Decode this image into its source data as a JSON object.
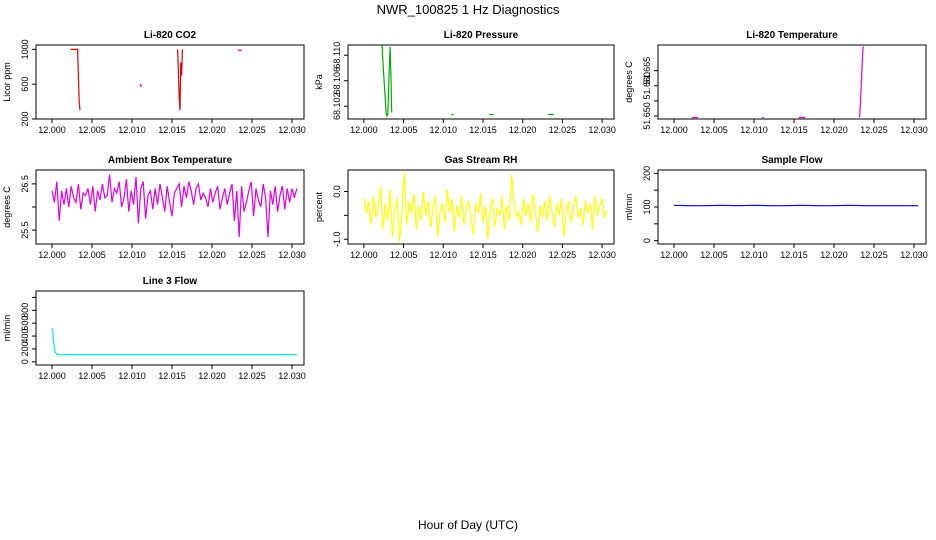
{
  "page": {
    "title": "NWR_100825  1 Hz Diagnostics",
    "xlabel": "Hour of Day (UTC)"
  },
  "chart_data": [
    {
      "type": "line",
      "title": "Li-820 CO2",
      "ylabel": "Licor ppm",
      "color": "#dd0000",
      "xlim": [
        11.998,
        12.0315
      ],
      "ylim": [
        200,
        1050
      ],
      "xticks": [
        12.0,
        12.005,
        12.01,
        12.015,
        12.02,
        12.025,
        12.03
      ],
      "xtick_labels": [
        "12.000",
        "12.005",
        "12.010",
        "12.015",
        "12.020",
        "12.025",
        "12.030"
      ],
      "yticks": [
        200,
        600,
        1000
      ],
      "ytick_labels": [
        "200",
        "600",
        "1000"
      ],
      "segments": [
        {
          "x": [
            12.0023,
            12.003,
            12.0032,
            12.0033,
            12.0034,
            12.0035
          ],
          "y": [
            1000,
            1000,
            1000,
            700,
            400,
            300
          ]
        },
        {
          "x": [
            12.011,
            12.0112
          ],
          "y": [
            600,
            570
          ]
        },
        {
          "x": [
            12.0157,
            12.0158,
            12.0159,
            12.016,
            12.0161,
            12.0162,
            12.0163
          ],
          "y": [
            1000,
            750,
            450,
            300,
            850,
            700,
            1000
          ]
        },
        {
          "x": [
            12.0232,
            12.0237
          ],
          "y": [
            990,
            990
          ]
        }
      ]
    },
    {
      "type": "line",
      "title": "Li-820 Pressure",
      "ylabel": "kPa",
      "color": "#00b000",
      "xlim": [
        11.998,
        12.0315
      ],
      "ylim": [
        68.1,
        68.1116
      ],
      "xticks": [
        12.0,
        12.005,
        12.01,
        12.015,
        12.02,
        12.025,
        12.03
      ],
      "xtick_labels": [
        "12.000",
        "12.005",
        "12.010",
        "12.015",
        "12.020",
        "12.025",
        "12.030"
      ],
      "yticks": [
        68.102,
        68.106,
        68.11
      ],
      "ytick_labels": [
        "68.102",
        "68.106",
        "68.110"
      ],
      "segments": [
        {
          "x": [
            12.0023,
            12.0024,
            12.0025,
            12.0026,
            12.0027,
            12.0028,
            12.0029,
            12.003,
            12.0031,
            12.0032,
            12.0033,
            12.0034,
            12.0035
          ],
          "y": [
            68.1115,
            68.109,
            68.107,
            68.105,
            68.103,
            68.101,
            68.1005,
            68.1007,
            68.104,
            68.108,
            68.1113,
            68.107,
            68.101
          ]
        },
        {
          "x": [
            12.011,
            12.0113
          ],
          "y": [
            68.1007,
            68.1007
          ]
        },
        {
          "x": [
            12.0158,
            12.0163
          ],
          "y": [
            68.1007,
            68.1007
          ]
        },
        {
          "x": [
            12.0232,
            12.0239
          ],
          "y": [
            68.1007,
            68.1007
          ]
        }
      ]
    },
    {
      "type": "line",
      "title": "Li-820 Temperature",
      "ylabel": "degrees C",
      "color": "#e000e0",
      "xlim": [
        11.998,
        12.0315
      ],
      "ylim": [
        51.649,
        51.6735
      ],
      "xticks": [
        12.0,
        12.005,
        12.01,
        12.015,
        12.02,
        12.025,
        12.03
      ],
      "xtick_labels": [
        "12.000",
        "12.005",
        "12.010",
        "12.015",
        "12.020",
        "12.025",
        "12.030"
      ],
      "yticks": [
        51.65,
        51.655,
        51.66,
        51.665
      ],
      "ytick_labels": [
        "51.650",
        "",
        "51.660",
        "51.665"
      ],
      "segments": [
        {
          "x": [
            12.0022,
            12.003
          ],
          "y": [
            51.6495,
            51.6495
          ]
        },
        {
          "x": [
            12.011,
            12.0112
          ],
          "y": [
            51.6495,
            51.6495
          ]
        },
        {
          "x": [
            12.0156,
            12.0164
          ],
          "y": [
            51.6495,
            51.6495
          ]
        },
        {
          "x": [
            12.0232,
            12.0233,
            12.0234,
            12.0235,
            12.0236,
            12.0237
          ],
          "y": [
            51.6495,
            51.654,
            51.66,
            51.666,
            51.672,
            51.673
          ]
        }
      ]
    },
    {
      "type": "line",
      "title": "Ambient Box Temperature",
      "ylabel": "degrees C",
      "color": "#e000e0",
      "xlim": [
        11.998,
        12.0315
      ],
      "ylim": [
        25.2,
        26.8
      ],
      "xticks": [
        12.0,
        12.005,
        12.01,
        12.015,
        12.02,
        12.025,
        12.03
      ],
      "xtick_labels": [
        "12.000",
        "12.005",
        "12.010",
        "12.015",
        "12.020",
        "12.025",
        "12.030"
      ],
      "yticks": [
        25.5,
        26.0,
        26.5
      ],
      "ytick_labels": [
        "25.5",
        "",
        "26.5"
      ],
      "segments": [
        {
          "x": [
            12.0,
            12.0003,
            12.0006,
            12.0009,
            12.0012,
            12.0015,
            12.0018,
            12.0021,
            12.0024,
            12.0027,
            12.003,
            12.0033,
            12.0036,
            12.0039,
            12.0042,
            12.0045,
            12.0048,
            12.0051,
            12.0054,
            12.0057,
            12.006,
            12.0063,
            12.0066,
            12.0069,
            12.0072,
            12.0075,
            12.0078,
            12.0081,
            12.0084,
            12.0087,
            12.009,
            12.0093,
            12.0096,
            12.0099,
            12.0102,
            12.0105,
            12.0108,
            12.0111,
            12.0114,
            12.0117,
            12.012,
            12.0123,
            12.0126,
            12.0129,
            12.0132,
            12.0135,
            12.0138,
            12.0141,
            12.0144,
            12.0147,
            12.015,
            12.0153,
            12.0156,
            12.0159,
            12.0162,
            12.0165,
            12.0168,
            12.0171,
            12.0174,
            12.0177,
            12.018,
            12.0183,
            12.0186,
            12.0189,
            12.0192,
            12.0195,
            12.0198,
            12.0201,
            12.0204,
            12.0207,
            12.021,
            12.0213,
            12.0216,
            12.0219,
            12.0222,
            12.0225,
            12.0228,
            12.0231,
            12.0234,
            12.0237,
            12.024,
            12.0243,
            12.0246,
            12.0249,
            12.0252,
            12.0255,
            12.0258,
            12.0261,
            12.0264,
            12.0267,
            12.027,
            12.0273,
            12.0276,
            12.0279,
            12.0282,
            12.0285,
            12.0288,
            12.0291,
            12.0294,
            12.0297,
            12.03,
            12.0303,
            12.0306
          ],
          "y": [
            26.35,
            26.1,
            26.55,
            25.7,
            26.35,
            26.05,
            26.4,
            26.0,
            26.45,
            26.2,
            26.1,
            26.5,
            25.95,
            26.3,
            26.25,
            26.4,
            26.05,
            26.45,
            25.9,
            26.35,
            26.15,
            26.5,
            26.2,
            26.25,
            26.7,
            26.1,
            26.4,
            26.3,
            26.55,
            26.0,
            26.2,
            26.6,
            25.9,
            26.35,
            26.05,
            26.65,
            25.65,
            26.4,
            26.55,
            25.75,
            26.25,
            26.35,
            25.95,
            26.4,
            26.05,
            26.5,
            26.2,
            25.9,
            26.45,
            26.1,
            25.8,
            26.3,
            26.4,
            26.5,
            26.0,
            26.45,
            26.2,
            26.55,
            26.35,
            26.05,
            26.4,
            26.5,
            26.15,
            26.3,
            26.2,
            26.0,
            26.4,
            26.1,
            26.3,
            26.45,
            25.95,
            26.2,
            26.4,
            26.05,
            26.3,
            26.5,
            25.7,
            26.35,
            25.35,
            26.45,
            25.9,
            26.1,
            26.35,
            26.55,
            25.8,
            26.4,
            26.15,
            26.0,
            26.5,
            26.2,
            25.35,
            26.35,
            26.05,
            26.45,
            25.9,
            26.25,
            26.45,
            25.95,
            26.4,
            26.1,
            26.4,
            26.2,
            26.4
          ]
        }
      ]
    },
    {
      "type": "line",
      "title": "Gas Stream RH",
      "ylabel": "percent",
      "color": "#ffff00",
      "xlim": [
        11.998,
        12.0315
      ],
      "ylim": [
        -1.1,
        0.45
      ],
      "xticks": [
        12.0,
        12.005,
        12.01,
        12.015,
        12.02,
        12.025,
        12.03
      ],
      "xtick_labels": [
        "12.000",
        "12.005",
        "12.010",
        "12.015",
        "12.020",
        "12.025",
        "12.030"
      ],
      "yticks": [
        -1.0,
        -0.5,
        0.0
      ],
      "ytick_labels": [
        "-1.0",
        "",
        "0.0"
      ],
      "segments": [
        {
          "x": [
            12.0,
            12.0003,
            12.0006,
            12.0009,
            12.0012,
            12.0015,
            12.0018,
            12.0021,
            12.0024,
            12.0027,
            12.003,
            12.0033,
            12.0036,
            12.0039,
            12.0042,
            12.0045,
            12.0048,
            12.0051,
            12.0054,
            12.0057,
            12.006,
            12.0063,
            12.0066,
            12.0069,
            12.0072,
            12.0075,
            12.0078,
            12.0081,
            12.0084,
            12.0087,
            12.009,
            12.0093,
            12.0096,
            12.0099,
            12.0102,
            12.0105,
            12.0108,
            12.0111,
            12.0114,
            12.0117,
            12.012,
            12.0123,
            12.0126,
            12.0129,
            12.0132,
            12.0135,
            12.0138,
            12.0141,
            12.0144,
            12.0147,
            12.015,
            12.0153,
            12.0156,
            12.0159,
            12.0162,
            12.0165,
            12.0168,
            12.0171,
            12.0174,
            12.0177,
            12.018,
            12.0183,
            12.0186,
            12.0189,
            12.0192,
            12.0195,
            12.0198,
            12.0201,
            12.0204,
            12.0207,
            12.021,
            12.0213,
            12.0216,
            12.0219,
            12.0222,
            12.0225,
            12.0228,
            12.0231,
            12.0234,
            12.0237,
            12.024,
            12.0243,
            12.0246,
            12.0249,
            12.0252,
            12.0255,
            12.0258,
            12.0261,
            12.0264,
            12.0267,
            12.027,
            12.0273,
            12.0276,
            12.0279,
            12.0282,
            12.0285,
            12.0288,
            12.0291,
            12.0294,
            12.0297,
            12.03,
            12.0303,
            12.0306
          ],
          "y": [
            -0.15,
            -0.45,
            -0.2,
            -0.7,
            -0.1,
            -0.55,
            -0.3,
            0.1,
            -0.8,
            -0.25,
            -0.6,
            0.05,
            -0.95,
            -0.35,
            -0.15,
            -1.05,
            -0.4,
            0.4,
            -0.7,
            -0.2,
            -0.45,
            -0.05,
            -0.8,
            -0.3,
            -0.6,
            0.0,
            -0.5,
            -0.2,
            -0.75,
            -0.35,
            -0.1,
            -0.95,
            -0.4,
            -0.25,
            -0.65,
            0.05,
            -0.45,
            -0.15,
            -0.85,
            -0.3,
            -0.55,
            -0.1,
            -0.7,
            -0.35,
            -0.2,
            -0.6,
            -0.9,
            -0.25,
            -0.45,
            -0.05,
            -0.65,
            -0.3,
            -1.0,
            -0.4,
            -0.15,
            -0.75,
            -0.35,
            -0.5,
            -0.1,
            -0.8,
            -0.3,
            -0.6,
            0.35,
            -0.2,
            -0.55,
            -0.4,
            -0.7,
            -0.15,
            -0.5,
            -0.25,
            -0.65,
            -0.05,
            -0.45,
            -0.85,
            -0.3,
            -0.55,
            -0.2,
            -0.6,
            -0.1,
            -0.45,
            -0.75,
            -0.25,
            -0.5,
            -0.15,
            -0.95,
            -0.4,
            -0.2,
            -0.65,
            -0.3,
            -0.1,
            -0.55,
            -0.35,
            -0.7,
            -0.2,
            -0.45,
            -0.25,
            -0.8,
            -0.1,
            -0.5,
            -0.3,
            -0.15,
            -0.55,
            -0.4
          ]
        }
      ]
    },
    {
      "type": "line",
      "title": "Sample Flow",
      "ylabel": "ml/min",
      "color": "#0000cc",
      "xlim": [
        11.998,
        12.0315
      ],
      "ylim": [
        -10,
        210
      ],
      "xticks": [
        12.0,
        12.005,
        12.01,
        12.015,
        12.02,
        12.025,
        12.03
      ],
      "xtick_labels": [
        "12.000",
        "12.005",
        "12.010",
        "12.015",
        "12.020",
        "12.025",
        "12.030"
      ],
      "yticks": [
        0,
        50,
        100,
        150,
        200
      ],
      "ytick_labels": [
        "0",
        "",
        "100",
        "",
        "200"
      ],
      "segments": [
        {
          "x": [
            12.0,
            12.002,
            12.004,
            12.006,
            12.008,
            12.01,
            12.012,
            12.014,
            12.016,
            12.018,
            12.02,
            12.022,
            12.024,
            12.026,
            12.028,
            12.03,
            12.0305
          ],
          "y": [
            105,
            104,
            104,
            105,
            104,
            105,
            104,
            104,
            105,
            104,
            104,
            105,
            104,
            104,
            104,
            104,
            104
          ]
        }
      ]
    },
    {
      "type": "line",
      "title": "Line 3 Flow",
      "ylabel": "ml/min",
      "color": "#00e5e5",
      "xlim": [
        11.998,
        12.0315
      ],
      "ylim": [
        -50,
        1100
      ],
      "xticks": [
        12.0,
        12.005,
        12.01,
        12.015,
        12.02,
        12.025,
        12.03
      ],
      "xtick_labels": [
        "12.000",
        "12.005",
        "12.010",
        "12.015",
        "12.020",
        "12.025",
        "12.030"
      ],
      "yticks": [
        0,
        200,
        400,
        600,
        800,
        1000
      ],
      "ytick_labels": [
        "0",
        "200",
        "400",
        "600",
        "800",
        ""
      ],
      "segments": [
        {
          "x": [
            12.0,
            12.0001,
            12.0002,
            12.0003,
            12.0004,
            12.0006,
            12.001,
            12.002,
            12.01,
            12.02,
            12.0306
          ],
          "y": [
            520,
            480,
            300,
            200,
            150,
            120,
            110,
            110,
            110,
            110,
            110
          ]
        }
      ]
    }
  ]
}
